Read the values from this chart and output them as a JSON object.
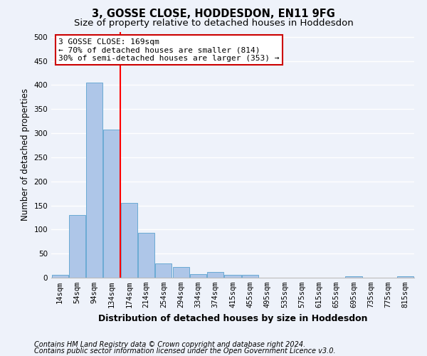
{
  "title": "3, GOSSE CLOSE, HODDESDON, EN11 9FG",
  "subtitle": "Size of property relative to detached houses in Hoddesdon",
  "xlabel": "Distribution of detached houses by size in Hoddesdon",
  "ylabel": "Number of detached properties",
  "footer1": "Contains HM Land Registry data © Crown copyright and database right 2024.",
  "footer2": "Contains public sector information licensed under the Open Government Licence v3.0.",
  "categories": [
    "14sqm",
    "54sqm",
    "94sqm",
    "134sqm",
    "174sqm",
    "214sqm",
    "254sqm",
    "294sqm",
    "334sqm",
    "374sqm",
    "415sqm",
    "455sqm",
    "495sqm",
    "535sqm",
    "575sqm",
    "615sqm",
    "655sqm",
    "695sqm",
    "735sqm",
    "775sqm",
    "815sqm"
  ],
  "values": [
    6,
    130,
    405,
    308,
    155,
    93,
    30,
    22,
    8,
    12,
    6,
    6,
    0,
    0,
    0,
    0,
    0,
    3,
    0,
    0,
    3
  ],
  "bar_color": "#aec6e8",
  "bar_edge_color": "#6aaad4",
  "red_line_index": 4,
  "annotation_text": "3 GOSSE CLOSE: 169sqm\n← 70% of detached houses are smaller (814)\n30% of semi-detached houses are larger (353) →",
  "annotation_box_facecolor": "#ffffff",
  "annotation_box_edgecolor": "#cc0000",
  "ylim": [
    0,
    510
  ],
  "yticks": [
    0,
    50,
    100,
    150,
    200,
    250,
    300,
    350,
    400,
    450,
    500
  ],
  "background_color": "#eef2fa",
  "grid_color": "#ffffff",
  "title_fontsize": 10.5,
  "subtitle_fontsize": 9.5,
  "ylabel_fontsize": 8.5,
  "xlabel_fontsize": 9,
  "tick_fontsize": 7.5,
  "footer_fontsize": 7,
  "annot_fontsize": 8
}
